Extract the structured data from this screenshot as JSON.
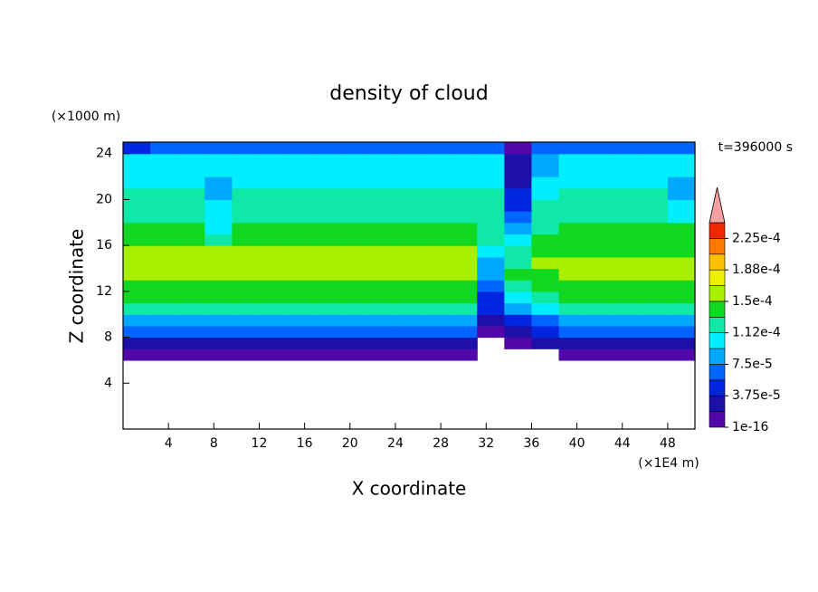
{
  "chart_data": {
    "type": "contour",
    "title": "density of cloud",
    "x_label": "X coordinate",
    "y_label": "Z coordinate",
    "x_unit": "(×1E4 m)",
    "y_unit": "(×1000 m)",
    "time_label": "t=396000 s",
    "xlim": [
      0,
      50.4
    ],
    "ylim": [
      0,
      25
    ],
    "xticks": [
      4,
      8,
      12,
      16,
      20,
      24,
      28,
      32,
      36,
      40,
      44,
      48
    ],
    "yticks": [
      4,
      8,
      12,
      16,
      20,
      24
    ],
    "x": [
      1.2,
      3.6,
      6,
      8.4,
      10.8,
      13.2,
      15.6,
      18,
      20.4,
      22.8,
      25.2,
      27.6,
      30,
      32.4,
      34.8,
      37.2,
      39.6,
      42,
      44.4,
      46.8,
      49.2
    ],
    "y": [
      0.5,
      1.5,
      2.5,
      3.5,
      4.5,
      5.5,
      6.5,
      7.5,
      8.5,
      9.5,
      10.5,
      11.5,
      12.5,
      13.5,
      14.5,
      15.5,
      16.5,
      17.5,
      18.5,
      19.5,
      20.5,
      21.5,
      22.5,
      23.5,
      24.5
    ],
    "z": [
      [
        null,
        null,
        null,
        null,
        null,
        null,
        null,
        null,
        null,
        null,
        null,
        null,
        null,
        null,
        null,
        null,
        null,
        null,
        null,
        null,
        null
      ],
      [
        null,
        null,
        null,
        null,
        null,
        null,
        null,
        null,
        null,
        null,
        null,
        null,
        null,
        null,
        null,
        null,
        null,
        null,
        null,
        null,
        null
      ],
      [
        null,
        null,
        null,
        null,
        null,
        null,
        null,
        null,
        null,
        null,
        null,
        null,
        null,
        null,
        null,
        null,
        null,
        null,
        null,
        null,
        null
      ],
      [
        null,
        null,
        null,
        null,
        null,
        null,
        null,
        null,
        null,
        null,
        null,
        null,
        null,
        null,
        null,
        null,
        null,
        null,
        null,
        null,
        null
      ],
      [
        null,
        null,
        null,
        null,
        null,
        null,
        null,
        null,
        null,
        null,
        null,
        null,
        null,
        null,
        null,
        null,
        null,
        null,
        null,
        null,
        null
      ],
      [
        null,
        null,
        null,
        null,
        null,
        null,
        null,
        null,
        null,
        null,
        null,
        null,
        null,
        null,
        null,
        null,
        null,
        null,
        null,
        null,
        null
      ],
      [
        1e-05,
        1e-05,
        1e-05,
        1e-05,
        1e-05,
        1e-05,
        1e-05,
        1e-05,
        1e-05,
        1e-05,
        1e-05,
        1e-05,
        1e-05,
        null,
        null,
        null,
        1e-05,
        1e-05,
        1e-05,
        1e-05,
        1e-05
      ],
      [
        3e-05,
        3e-05,
        3e-05,
        3e-05,
        3e-05,
        3e-05,
        3e-05,
        3e-05,
        3e-05,
        3e-05,
        3e-05,
        3e-05,
        3e-05,
        null,
        1e-05,
        2e-05,
        3e-05,
        3e-05,
        3e-05,
        3e-05,
        3e-05
      ],
      [
        6e-05,
        6e-05,
        6e-05,
        6e-05,
        6e-05,
        6e-05,
        6e-05,
        6e-05,
        6e-05,
        6e-05,
        6e-05,
        6e-05,
        6e-05,
        1e-05,
        2e-05,
        4e-05,
        6e-05,
        6e-05,
        6e-05,
        6e-05,
        6e-05
      ],
      [
        9e-05,
        9e-05,
        9e-05,
        9e-05,
        9e-05,
        9e-05,
        9e-05,
        9e-05,
        9e-05,
        9e-05,
        9e-05,
        9e-05,
        9e-05,
        2e-05,
        4e-05,
        7e-05,
        9e-05,
        9e-05,
        9e-05,
        9e-05,
        9e-05
      ],
      [
        0.000115,
        0.000115,
        0.000115,
        0.000115,
        0.000115,
        0.000115,
        0.000115,
        0.000115,
        0.000115,
        0.000115,
        0.000115,
        0.000115,
        0.000115,
        4e-05,
        8e-05,
        0.0001,
        0.000115,
        0.000115,
        0.000115,
        0.000115,
        0.000115
      ],
      [
        0.000135,
        0.000135,
        0.000135,
        0.000135,
        0.000135,
        0.000135,
        0.000135,
        0.000135,
        0.000135,
        0.000135,
        0.000135,
        0.000135,
        0.000135,
        5e-05,
        0.00011,
        0.00013,
        0.000135,
        0.000135,
        0.000135,
        0.000135,
        0.000135
      ],
      [
        0.000145,
        0.000145,
        0.000145,
        0.000145,
        0.000145,
        0.000145,
        0.000145,
        0.000145,
        0.000145,
        0.000145,
        0.000145,
        0.000145,
        0.000145,
        6e-05,
        0.00013,
        0.00014,
        0.000145,
        0.000145,
        0.000145,
        0.000145,
        0.000145
      ],
      [
        0.000155,
        0.000155,
        0.000155,
        0.000155,
        0.000155,
        0.000155,
        0.000155,
        0.000155,
        0.000165,
        0.000165,
        0.000165,
        0.000165,
        0.000165,
        8e-05,
        0.00014,
        0.000145,
        0.00015,
        0.00015,
        0.00015,
        0.00015,
        0.00015
      ],
      [
        0.00016,
        0.00016,
        0.00016,
        0.00016,
        0.00016,
        0.00016,
        0.00016,
        0.00016,
        0.000168,
        0.000168,
        0.000168,
        0.000168,
        0.000168,
        9e-05,
        0.00013,
        0.00015,
        0.00015,
        0.00015,
        0.00015,
        0.00015,
        0.00015
      ],
      [
        0.000155,
        0.000155,
        0.000155,
        0.000155,
        0.000155,
        0.000155,
        0.000155,
        0.000155,
        0.000162,
        0.000162,
        0.000162,
        0.000162,
        0.000162,
        0.00011,
        0.00012,
        0.000145,
        0.000145,
        0.000145,
        0.000145,
        0.000145,
        0.000145
      ],
      [
        0.000145,
        0.000145,
        0.000145,
        0.00012,
        0.000145,
        0.000145,
        0.000145,
        0.000145,
        0.000145,
        0.000145,
        0.000145,
        0.000145,
        0.000145,
        0.00012,
        0.0001,
        0.00014,
        0.000145,
        0.000145,
        0.000145,
        0.000145,
        0.000145
      ],
      [
        0.000135,
        0.000135,
        0.000135,
        0.00011,
        0.000135,
        0.000135,
        0.000135,
        0.000135,
        0.000135,
        0.000135,
        0.000135,
        0.000135,
        0.000135,
        0.00013,
        8e-05,
        0.00013,
        0.000135,
        0.000135,
        0.000135,
        0.000135,
        0.000135
      ],
      [
        0.00013,
        0.00013,
        0.00013,
        0.000105,
        0.00013,
        0.00013,
        0.00013,
        0.00013,
        0.00013,
        0.00013,
        0.00013,
        0.00013,
        0.00013,
        0.00013,
        6e-05,
        0.000125,
        0.00013,
        0.00013,
        0.00013,
        0.00013,
        0.0001
      ],
      [
        0.00013,
        0.00013,
        0.00013,
        0.0001,
        0.00013,
        0.00013,
        0.00013,
        0.00013,
        0.00013,
        0.00013,
        0.00013,
        0.00013,
        0.00013,
        0.00013,
        5e-05,
        0.00012,
        0.00013,
        0.00013,
        0.00013,
        0.00013,
        0.0001
      ],
      [
        0.00012,
        0.00012,
        0.00012,
        9e-05,
        0.00012,
        0.00012,
        0.00012,
        0.00012,
        0.00012,
        0.00012,
        0.00012,
        0.00012,
        0.00012,
        0.00012,
        4e-05,
        0.00011,
        0.00012,
        0.00012,
        0.00012,
        0.00012,
        9e-05
      ],
      [
        0.00011,
        0.00011,
        0.00011,
        9e-05,
        0.00011,
        0.00011,
        0.00011,
        0.00011,
        0.00011,
        0.00011,
        0.00011,
        0.00011,
        0.00011,
        0.00011,
        3e-05,
        0.0001,
        0.00011,
        0.00011,
        0.00011,
        0.00011,
        9e-05
      ],
      [
        0.0001,
        0.0001,
        0.0001,
        0.0001,
        0.0001,
        0.0001,
        0.0001,
        0.0001,
        0.0001,
        0.0001,
        0.0001,
        0.0001,
        0.0001,
        0.0001,
        2e-05,
        9e-05,
        0.0001,
        0.0001,
        0.0001,
        0.0001,
        0.0001
      ],
      [
        0.0001,
        0.0001,
        0.0001,
        0.0001,
        0.0001,
        0.0001,
        0.0001,
        0.0001,
        0.0001,
        0.0001,
        0.0001,
        0.0001,
        0.0001,
        0.0001,
        2e-05,
        8e-05,
        0.0001,
        0.0001,
        0.0001,
        0.0001,
        0.0001
      ],
      [
        5e-05,
        7e-05,
        7e-05,
        7e-05,
        7e-05,
        7e-05,
        7e-05,
        7e-05,
        7e-05,
        7e-05,
        7e-05,
        7e-05,
        7e-05,
        6e-05,
        1e-05,
        6e-05,
        7e-05,
        7e-05,
        7e-05,
        7e-05,
        7e-05
      ]
    ],
    "colorbar": {
      "levels": [
        1e-16,
        1.875e-05,
        3.75e-05,
        5.625e-05,
        7.5e-05,
        9.375e-05,
        0.0001125,
        0.00013125,
        0.00015,
        0.00016875,
        0.0001875,
        0.00020625,
        0.000225,
        0.00024375
      ],
      "colors": [
        "#5208a8",
        "#1c10a8",
        "#0026e0",
        "#0064ff",
        "#00a8ff",
        "#00eeff",
        "#10e8a8",
        "#10d820",
        "#a8f000",
        "#eef000",
        "#ffc000",
        "#ff7800",
        "#f02800"
      ],
      "over_color": "#f4a0a0",
      "ticks": [
        1e-16,
        {
          "value": 3.75e-05,
          "label": "3.75e-5"
        },
        {
          "value": 7.5e-05,
          "label": "7.5e-5"
        },
        {
          "value": 0.0001125,
          "label": "1.12e-4"
        },
        {
          "value": 0.00015,
          "label": "1.5e-4"
        },
        {
          "value": 0.0001875,
          "label": "1.88e-4"
        },
        {
          "value": 0.000225,
          "label": "2.25e-4"
        }
      ]
    }
  }
}
